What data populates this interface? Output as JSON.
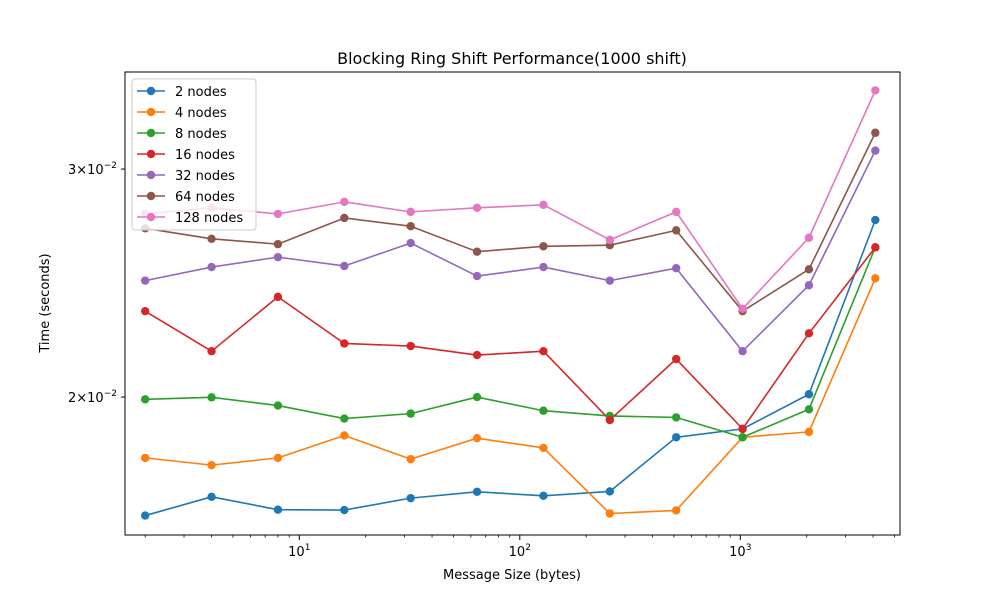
{
  "chart_data": {
    "type": "line",
    "title": "Blocking Ring Shift Performance(1000 shift)",
    "xlabel": "Message Size (bytes)",
    "ylabel": "Time (seconds)",
    "xscale": "log",
    "yscale": "log",
    "xlim": [
      1.62,
      5300
    ],
    "ylim": [
      0.01565,
      0.03565
    ],
    "grid": false,
    "legend_position": "top-left",
    "x": [
      2,
      4,
      8,
      16,
      32,
      64,
      128,
      256,
      512,
      1024,
      2048,
      4096
    ],
    "xticks": [
      {
        "value": 10,
        "base": "10",
        "exp": "1"
      },
      {
        "value": 100,
        "base": "10",
        "exp": "2"
      },
      {
        "value": 1000,
        "base": "10",
        "exp": "3"
      }
    ],
    "yticks": [
      {
        "value": 0.02,
        "mant": "2",
        "base": "×10",
        "exp": "−2"
      },
      {
        "value": 0.03,
        "mant": "3",
        "base": "×10",
        "exp": "−2"
      }
    ],
    "series": [
      {
        "name": "2 nodes",
        "color": "#1f77b4",
        "values": [
          0.0162,
          0.01675,
          0.01637,
          0.01636,
          0.01671,
          0.0169,
          0.01678,
          0.01691,
          0.01862,
          0.0189,
          0.0201,
          0.0274
        ]
      },
      {
        "name": "4 nodes",
        "color": "#ff7f0e",
        "values": [
          0.01795,
          0.01772,
          0.01795,
          0.01868,
          0.01791,
          0.01859,
          0.01827,
          0.01626,
          0.01635,
          0.01862,
          0.0188,
          0.0247
        ]
      },
      {
        "name": "8 nodes",
        "color": "#2ca02c",
        "values": [
          0.01992,
          0.01999,
          0.0197,
          0.01925,
          0.01942,
          0.02,
          0.01952,
          0.01934,
          0.01929,
          0.01862,
          0.01957,
          0.0261
        ]
      },
      {
        "name": "16 nodes",
        "color": "#d62728",
        "values": [
          0.0233,
          0.0217,
          0.0239,
          0.022,
          0.0219,
          0.02155,
          0.0217,
          0.0192,
          0.0214,
          0.0189,
          0.0224,
          0.0261
        ]
      },
      {
        "name": "32 nodes",
        "color": "#9467bd",
        "values": [
          0.0246,
          0.0252,
          0.02565,
          0.02525,
          0.0263,
          0.0248,
          0.0252,
          0.0246,
          0.02515,
          0.0217,
          0.0244,
          0.031
        ]
      },
      {
        "name": "64 nodes",
        "color": "#8c564b",
        "values": [
          0.027,
          0.0265,
          0.02625,
          0.0275,
          0.0271,
          0.0259,
          0.02615,
          0.0262,
          0.0269,
          0.0233,
          0.0251,
          0.032
        ]
      },
      {
        "name": "128 nodes",
        "color": "#e377c2",
        "values": [
          0.0277,
          0.028,
          0.0277,
          0.0283,
          0.0278,
          0.028,
          0.02815,
          0.02645,
          0.0278,
          0.0234,
          0.02655,
          0.0345
        ]
      }
    ]
  }
}
